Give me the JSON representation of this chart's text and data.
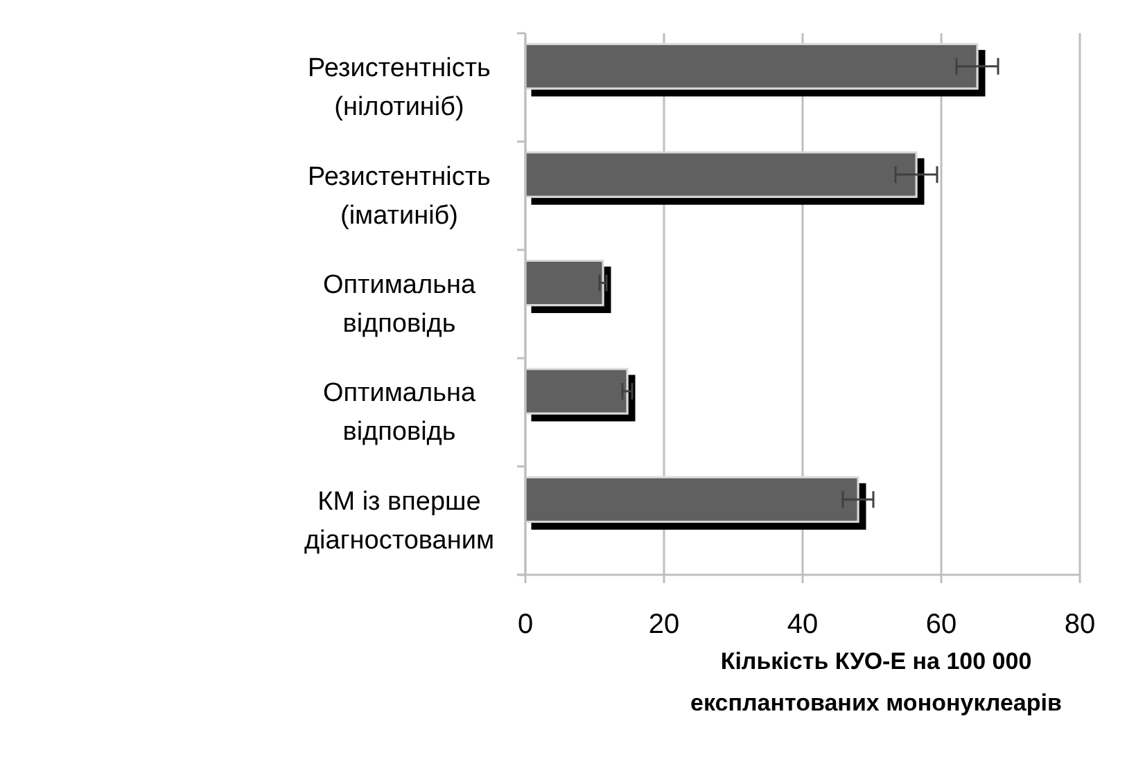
{
  "chart_data": {
    "type": "bar",
    "orientation": "horizontal",
    "xlabel": "Кількість КУО-Е на 100 000 експлантованих мононуклеарів",
    "categories": [
      "Резистентність (нілотиніб)",
      "Резистентність (іматиніб)",
      "Оптимальна відповідь",
      "Оптимальна відповідь",
      "КМ із вперше діагностованим"
    ],
    "values": [
      65.2,
      56.4,
      11.2,
      14.7,
      48
    ],
    "errors": [
      3,
      3,
      0.5,
      0.7,
      2.2
    ],
    "color": "#606060",
    "xlim": [
      0,
      80
    ],
    "xticks": [
      0,
      20,
      40,
      60,
      80
    ],
    "grid": "x"
  }
}
